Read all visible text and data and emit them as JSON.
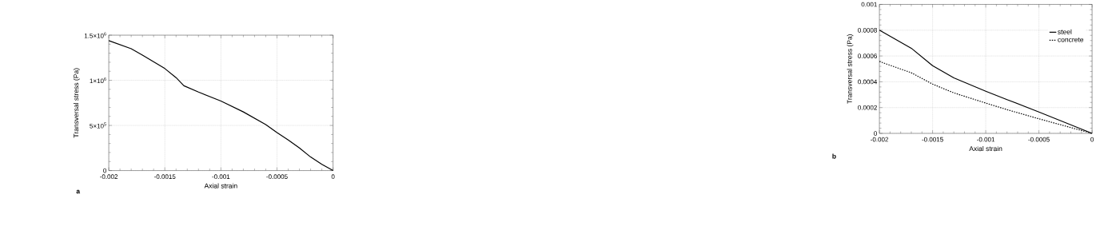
{
  "chart_data": [
    {
      "type": "line",
      "xlabel": "Axial strain",
      "ylabel": "Transversal stress (Pa)",
      "annotations": [
        "a"
      ],
      "x": [
        -0.002,
        -0.0018,
        -0.0017,
        -0.0015,
        -0.0014,
        -0.00133,
        -0.0012,
        -0.001,
        -0.0008,
        -0.0006,
        -0.0005,
        -0.0004,
        -0.0003,
        -0.0002,
        -0.0001,
        0
      ],
      "series": [
        {
          "color": "#000000",
          "values": [
            1440000,
            1350000,
            1280000,
            1130000,
            1030000,
            940000,
            870000,
            770000,
            650000,
            510000,
            420000,
            340000,
            250000,
            150000,
            70000,
            0
          ]
        }
      ],
      "xlim": [
        -0.002,
        0
      ],
      "ylim": [
        0,
        1500000
      ],
      "xticks": [
        -0.002,
        -0.0015,
        -0.001,
        -0.0005,
        0
      ],
      "yticks": [
        0,
        {
          "value": 500000,
          "label": "5×10$^{5}$"
        },
        {
          "value": 1000000,
          "label": "1×10$^{6}$"
        },
        {
          "value": 1500000,
          "label": "1.5×10$^{6}$"
        }
      ],
      "grid": true,
      "line_style": "solid",
      "marker": "none"
    },
    {
      "type": "line",
      "xlabel": "Axial strain",
      "ylabel": "Transversal stress (Pa)",
      "annotations": [
        "b"
      ],
      "x": [
        -0.002,
        -0.0017,
        -0.0015,
        -0.0013,
        -0.001,
        -0.0008,
        -0.0005,
        0
      ],
      "series": [
        {
          "name": "steel",
          "color": "#000000",
          "line_style": "solid",
          "values": [
            0.0008,
            0.00066,
            0.000525,
            0.00043,
            0.000327,
            0.000262,
            0.000166,
            0
          ]
        },
        {
          "name": "concrete",
          "color": "#000000",
          "line_style": "dashed",
          "values": [
            0.000557,
            0.00047,
            0.000382,
            0.000314,
            0.000235,
            0.000184,
            0.000113,
            0
          ]
        }
      ],
      "xlim": [
        -0.002,
        0
      ],
      "ylim": [
        0,
        0.001
      ],
      "xticks": [
        -0.002,
        -0.0015,
        -0.001,
        -0.0005,
        0
      ],
      "yticks": [
        0,
        0.0002,
        0.0004,
        0.0006,
        0.0008,
        0.001
      ],
      "grid": true,
      "legend": "top right",
      "marker": "none"
    }
  ]
}
